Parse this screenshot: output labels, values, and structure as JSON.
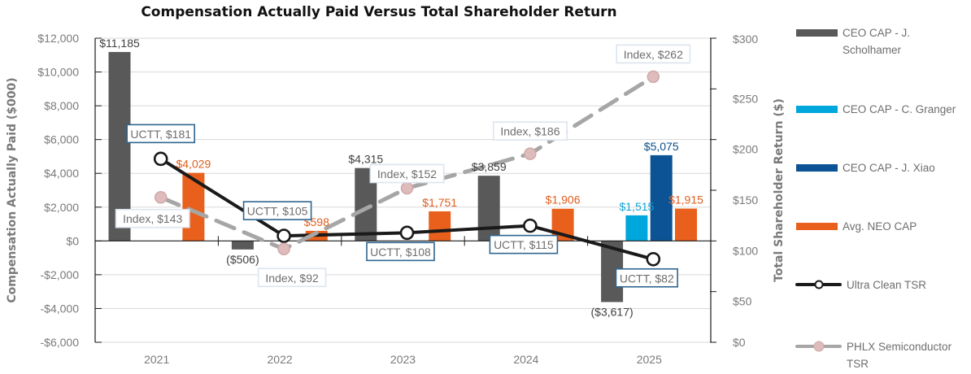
{
  "chart_data": {
    "type": "bar",
    "title": "Compensation Actually Paid Versus Total Shareholder Return",
    "xlabel": "",
    "ylabel": "Compensation Actually Paid ($000)",
    "y2label": "Total Shareholder Return ($)",
    "categories": [
      "2021",
      "2022",
      "2023",
      "2024",
      "2025"
    ],
    "ylim": [
      -6000,
      12000
    ],
    "y2lim": [
      0,
      300
    ],
    "yticks": [
      {
        "value": 12000,
        "label": "$12,000"
      },
      {
        "value": 10000,
        "label": "$10,000"
      },
      {
        "value": 8000,
        "label": "$8,000"
      },
      {
        "value": 6000,
        "label": "$6,000"
      },
      {
        "value": 4000,
        "label": "$4,000"
      },
      {
        "value": 2000,
        "label": "$2,000"
      },
      {
        "value": 0,
        "label": "$0"
      },
      {
        "value": -2000,
        "label": "-$2,000"
      },
      {
        "value": -4000,
        "label": "-$4,000"
      },
      {
        "value": -6000,
        "label": "-$6,000"
      }
    ],
    "y2ticks": [
      {
        "value": 300,
        "label": "$300"
      },
      {
        "value": 250,
        "label": "$250"
      },
      {
        "value": 200,
        "label": "$200"
      },
      {
        "value": 150,
        "label": "$150"
      },
      {
        "value": 100,
        "label": "$100"
      },
      {
        "value": 50,
        "label": "$50"
      },
      {
        "value": 0,
        "label": "$0"
      }
    ],
    "grid": true,
    "legend_position": "right",
    "bar_series": [
      {
        "name": "CEO CAP - J. Scholhamer",
        "color": "#595959",
        "label_color": "#404040",
        "values": [
          11185,
          -506,
          4315,
          3859,
          -3617
        ],
        "labels": [
          "$11,185",
          "($506)",
          "$4,315",
          "$3,859",
          "($3,617)"
        ]
      },
      {
        "name": "CEO CAP - C. Granger",
        "color": "#00a7dc",
        "label_color": "#12a3d6",
        "values": [
          null,
          null,
          null,
          null,
          1515
        ],
        "labels": [
          null,
          null,
          null,
          null,
          "$1,515"
        ]
      },
      {
        "name": "CEO CAP - J. Xiao",
        "color": "#0b5394",
        "label_color": "#0b4f8a",
        "values": [
          null,
          null,
          null,
          null,
          5075
        ],
        "labels": [
          null,
          null,
          null,
          null,
          "$5,075"
        ]
      },
      {
        "name": "Avg. NEO CAP",
        "color": "#e8601c",
        "label_color": "#e05d1e",
        "values": [
          4029,
          598,
          1751,
          1906,
          1915
        ],
        "labels": [
          "$4,029",
          "$598",
          "$1,751",
          "$1,906",
          "$1,915"
        ]
      }
    ],
    "line_series": [
      {
        "name": "Ultra Clean TSR",
        "axis": "right",
        "color": "#1a1a1a",
        "marker_fill": "#ffffff",
        "dashed": false,
        "values": [
          181,
          105,
          108,
          115,
          82
        ],
        "labels": [
          "UCTT, $181",
          "UCTT, $105",
          "UCTT, $108",
          "UCTT, $115",
          "UCTT, $82"
        ],
        "label_border": "#2e6590"
      },
      {
        "name": "PHLX Semiconductor TSR",
        "axis": "right",
        "color": "#a6a6a6",
        "marker_fill": "#dfbcbc",
        "dashed": true,
        "values": [
          143,
          92,
          152,
          186,
          262
        ],
        "labels": [
          "Index, $143",
          "Index, $92",
          "Index, $152",
          "Index, $186",
          "Index, $262"
        ],
        "label_border": "#dde4ef"
      }
    ]
  },
  "legend": {
    "items": [
      {
        "label_lines": [
          "CEO CAP - J.",
          "Scholhamer"
        ],
        "kind": "bar",
        "color": "#595959"
      },
      {
        "label_lines": [
          "CEO CAP - C. Granger"
        ],
        "kind": "bar",
        "color": "#00a7dc"
      },
      {
        "label_lines": [
          "CEO CAP - J. Xiao"
        ],
        "kind": "bar",
        "color": "#0b5394"
      },
      {
        "label_lines": [
          "Avg. NEO CAP"
        ],
        "kind": "bar",
        "color": "#e8601c"
      },
      {
        "label_lines": [
          "Ultra Clean TSR"
        ],
        "kind": "line",
        "color": "#1a1a1a",
        "marker_fill": "#ffffff"
      },
      {
        "label_lines": [
          "PHLX Semiconductor",
          "TSR"
        ],
        "kind": "line",
        "color": "#a6a6a6",
        "marker_fill": "#dfbcbc"
      }
    ]
  }
}
